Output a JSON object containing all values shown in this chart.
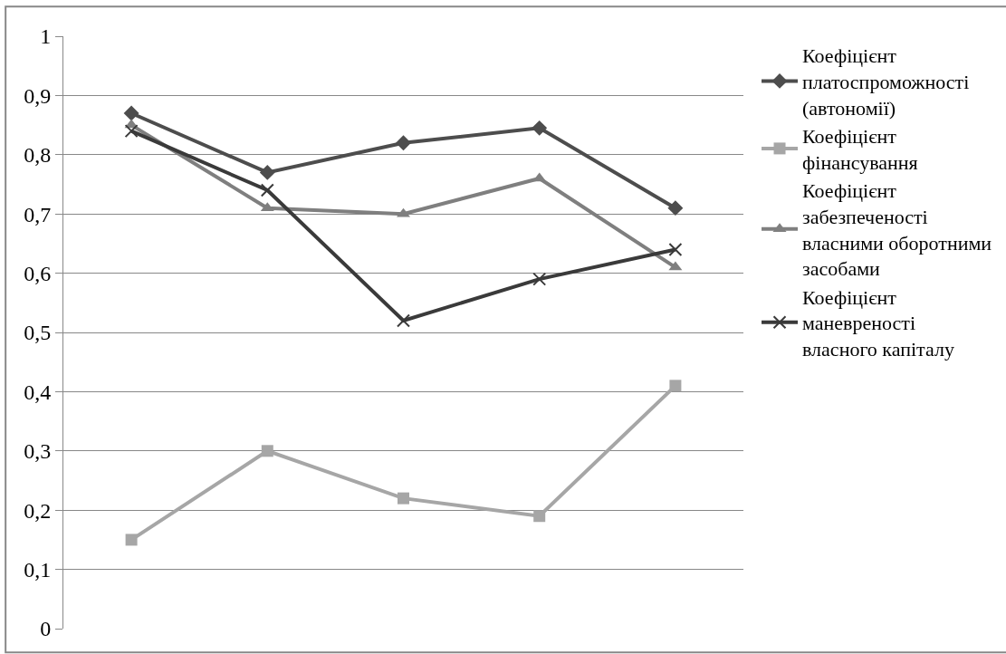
{
  "chart_data": {
    "type": "line",
    "categories": [
      null,
      null,
      null,
      null,
      null
    ],
    "series": [
      {
        "name": "Коефіцієнт платоспроможності (автономії)",
        "color": "#4d4d4d",
        "marker": "diamond",
        "values": [
          0.87,
          0.77,
          0.82,
          0.845,
          0.71
        ]
      },
      {
        "name": "Коефіцієнт фінансування",
        "color": "#a6a6a6",
        "marker": "square",
        "values": [
          0.15,
          0.3,
          0.22,
          0.19,
          0.41
        ]
      },
      {
        "name": "Коефіцієнт забезпеченості власними оборотними засобами",
        "color": "#7f7f7f",
        "marker": "triangle",
        "values": [
          0.85,
          0.71,
          0.7,
          0.76,
          0.61
        ]
      },
      {
        "name": "Коефіцієнт маневреності власного капіталу",
        "color": "#3a3a3a",
        "marker": "cross",
        "values": [
          0.84,
          0.74,
          0.52,
          0.59,
          0.64
        ]
      }
    ],
    "ylim": [
      0,
      1
    ],
    "yticks": [
      0,
      {
        "value": 0.1,
        "label": "0,1"
      },
      {
        "value": 0.2,
        "label": "0,2"
      },
      {
        "value": 0.3,
        "label": "0,3"
      },
      {
        "value": 0.4,
        "label": "0,4"
      },
      {
        "value": 0.5,
        "label": "0,5"
      },
      {
        "value": 0.6,
        "label": "0,6"
      },
      {
        "value": 0.7,
        "label": "0,7"
      },
      {
        "value": 0.8,
        "label": "0,8"
      },
      {
        "value": 0.9,
        "label": "0,9"
      },
      1
    ],
    "grid": "y",
    "legend": "right",
    "tick_labels": "y"
  }
}
